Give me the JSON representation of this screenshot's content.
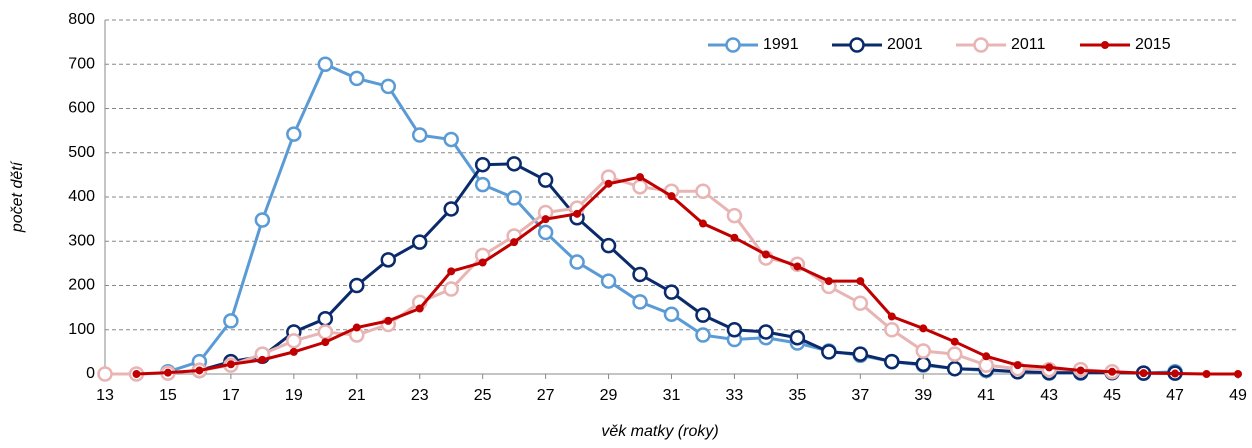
{
  "chart_data": {
    "type": "line",
    "x_label": "věk matky (roky)",
    "y_label": "počet dětí",
    "xlim": [
      13,
      49
    ],
    "xticks": [
      13,
      15,
      17,
      19,
      21,
      23,
      25,
      27,
      29,
      31,
      33,
      35,
      37,
      39,
      41,
      43,
      45,
      47,
      49
    ],
    "ylim": [
      0,
      800
    ],
    "yticks": [
      0,
      100,
      200,
      300,
      400,
      500,
      600,
      700,
      800
    ],
    "grid": true,
    "legend": "top-right",
    "series": [
      {
        "name": "1991",
        "color": "#5b9bd5",
        "marker": "open",
        "x": [
          15,
          16,
          17,
          18,
          19,
          20,
          21,
          22,
          23,
          24,
          25,
          26,
          27,
          28,
          29,
          30,
          31,
          32,
          33,
          34,
          35,
          36,
          37,
          38,
          39,
          40,
          41,
          42,
          43,
          44,
          45,
          46,
          47
        ],
        "values": [
          5,
          28,
          120,
          348,
          542,
          700,
          668,
          650,
          540,
          530,
          428,
          398,
          320,
          253,
          210,
          163,
          135,
          88,
          78,
          82,
          70,
          52,
          42,
          28,
          20,
          12,
          8,
          5,
          2,
          2,
          3,
          2,
          5
        ]
      },
      {
        "name": "2001",
        "color": "#0a2a6b",
        "marker": "open",
        "x": [
          16,
          17,
          18,
          19,
          20,
          21,
          22,
          23,
          24,
          25,
          26,
          27,
          28,
          29,
          30,
          31,
          32,
          33,
          34,
          35,
          36,
          37,
          38,
          39,
          40,
          41,
          42,
          43,
          44,
          45,
          46,
          47
        ],
        "values": [
          8,
          28,
          40,
          95,
          125,
          200,
          258,
          298,
          373,
          473,
          475,
          438,
          353,
          290,
          225,
          185,
          133,
          100,
          95,
          82,
          50,
          45,
          28,
          22,
          12,
          10,
          5,
          3,
          3,
          3,
          2,
          2
        ]
      },
      {
        "name": "2011",
        "color": "#e8b4b4",
        "marker": "open",
        "x": [
          13,
          14,
          15,
          16,
          17,
          18,
          19,
          20,
          21,
          22,
          23,
          24,
          25,
          26,
          27,
          28,
          29,
          30,
          31,
          32,
          33,
          34,
          35,
          36,
          37,
          38,
          39,
          40,
          41,
          42,
          43,
          44,
          45
        ],
        "values": [
          0,
          0,
          2,
          8,
          20,
          45,
          75,
          95,
          88,
          112,
          162,
          192,
          268,
          312,
          365,
          375,
          445,
          423,
          413,
          413,
          358,
          262,
          248,
          198,
          160,
          100,
          52,
          45,
          20,
          12,
          10,
          10,
          5
        ]
      },
      {
        "name": "2015",
        "color": "#c00000",
        "marker": "dot",
        "x": [
          14,
          15,
          16,
          17,
          18,
          19,
          20,
          21,
          22,
          23,
          24,
          25,
          26,
          27,
          28,
          29,
          30,
          31,
          32,
          33,
          34,
          35,
          36,
          37,
          38,
          39,
          40,
          41,
          42,
          43,
          44,
          45,
          46,
          47,
          48,
          49
        ],
        "values": [
          0,
          3,
          8,
          22,
          32,
          50,
          72,
          105,
          120,
          148,
          232,
          252,
          298,
          350,
          362,
          430,
          445,
          402,
          340,
          308,
          270,
          243,
          210,
          210,
          130,
          103,
          73,
          40,
          20,
          15,
          8,
          5,
          2,
          1,
          0,
          0
        ]
      }
    ]
  }
}
